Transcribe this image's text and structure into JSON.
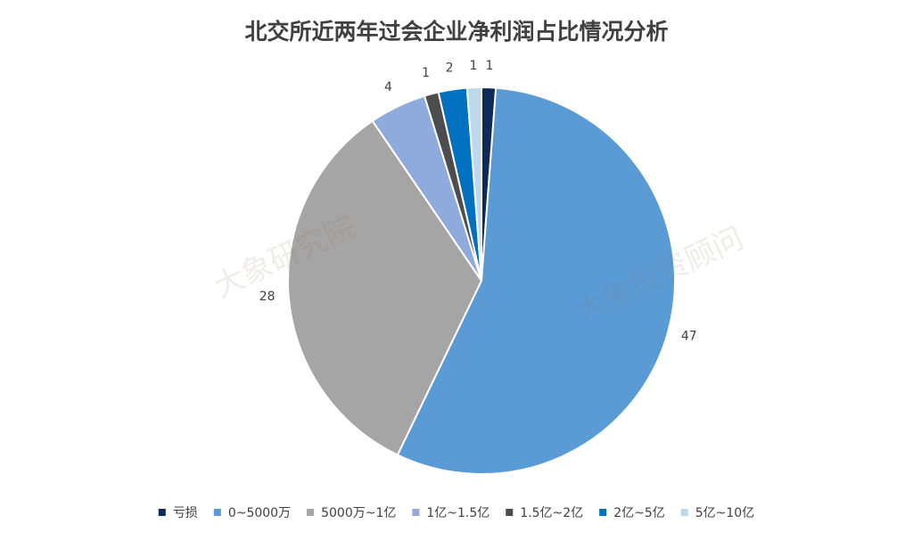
{
  "chart_data": {
    "type": "pie",
    "title": "北交所近两年过会企业净利润占比情况分析",
    "categories": [
      "亏损",
      "0~5000万",
      "5000万~1亿",
      "1亿~1.5亿",
      "1.5亿~2亿",
      "2亿~5亿",
      "5亿~10亿"
    ],
    "values": [
      1,
      47,
      28,
      4,
      1,
      2,
      1
    ],
    "colors": [
      "#0e2a5a",
      "#5b9bd5",
      "#a5a5a5",
      "#8faadc",
      "#4d4d4d",
      "#0070c0",
      "#bdd7ee"
    ],
    "legend": "bottom",
    "watermarks": [
      "大象研究院",
      "大象投资顾问"
    ]
  }
}
